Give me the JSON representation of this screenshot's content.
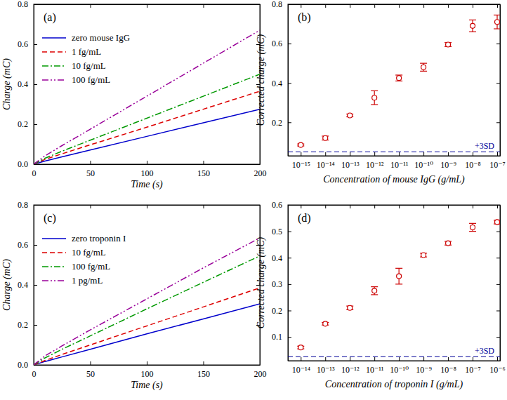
{
  "chart_data": [
    {
      "type": "line",
      "title": "(a)",
      "x_label": "Time (s)",
      "y_label": "Charge (mC)",
      "x": [
        0,
        10,
        25,
        50,
        100,
        150,
        200
      ],
      "series": [
        {
          "name": "zero mouse IgG",
          "color": "#0000cc",
          "line_style": "solid",
          "values": [
            0,
            0.016,
            0.037,
            0.071,
            0.139,
            0.207,
            0.275
          ]
        },
        {
          "name": "1 fg/mL",
          "color": "#dd0000",
          "line_style": "dashed",
          "values": [
            0,
            0.024,
            0.052,
            0.097,
            0.185,
            0.275,
            0.365
          ]
        },
        {
          "name": "10 fg/mL",
          "color": "#009900",
          "line_style": "dashdot",
          "values": [
            0,
            0.03,
            0.065,
            0.12,
            0.23,
            0.34,
            0.45
          ]
        },
        {
          "name": "100 fg/mL",
          "color": "#990099",
          "line_style": "dashdotdot",
          "values": [
            0,
            0.042,
            0.093,
            0.175,
            0.34,
            0.505,
            0.67
          ]
        }
      ],
      "xlim": [
        0,
        200
      ],
      "ylim": [
        0,
        0.8
      ],
      "xticks": [
        0,
        50,
        100,
        150,
        200
      ],
      "yticks": [
        {
          "value": 0,
          "label": "0.0"
        },
        0.2,
        0.4,
        0.6,
        0.8
      ],
      "legend": "upper left"
    },
    {
      "type": "scatter",
      "title": "(b)",
      "x_label": "Concentration of mouse IgG (g/mL)",
      "y_label": "Corrected charge (mC)",
      "x": [
        1e-15,
        1e-14,
        1e-13,
        1e-12,
        1e-11,
        1e-10,
        1e-09,
        1e-08,
        1e-07
      ],
      "values": [
        0.085,
        0.12,
        0.235,
        0.325,
        0.425,
        0.48,
        0.595,
        0.69,
        0.71
      ],
      "errors": [
        0.005,
        0.01,
        0.007,
        0.035,
        0.015,
        0.02,
        0.01,
        0.03,
        0.035
      ],
      "color": "#cc0000",
      "marker": "circle",
      "log": "x",
      "xlim": [
        3e-16,
        1.3e-07
      ],
      "ylim": [
        0.03,
        0.8
      ],
      "xticks": [
        {
          "value": 1e-15,
          "label": "10⁻¹⁵"
        },
        {
          "value": 1e-14,
          "label": "10⁻¹⁴"
        },
        {
          "value": 1e-13,
          "label": "10⁻¹³"
        },
        {
          "value": 1e-12,
          "label": "10⁻¹²"
        },
        {
          "value": 1e-11,
          "label": "10⁻¹¹"
        },
        {
          "value": 1e-10,
          "label": "10⁻¹⁰"
        },
        {
          "value": 1e-09,
          "label": "10⁻⁹"
        },
        {
          "value": 1e-08,
          "label": "10⁻⁸"
        },
        {
          "value": 1e-07,
          "label": "10⁻⁷"
        }
      ],
      "yticks": [
        0.2,
        0.4,
        0.6,
        0.8
      ],
      "threshold": {
        "value": 0.05,
        "label": "+3SD"
      }
    },
    {
      "type": "line",
      "title": "(c)",
      "x_label": "Time (s)",
      "y_label": "Charge (mC)",
      "x": [
        0,
        10,
        25,
        50,
        100,
        150,
        200
      ],
      "series": [
        {
          "name": "zero troponin I",
          "color": "#0000cc",
          "line_style": "solid",
          "values": [
            0,
            0.017,
            0.04,
            0.078,
            0.155,
            0.23,
            0.305
          ]
        },
        {
          "name": "10 fg/mL",
          "color": "#dd0000",
          "line_style": "dashed",
          "values": [
            0,
            0.022,
            0.052,
            0.1,
            0.195,
            0.29,
            0.385
          ]
        },
        {
          "name": "100 fg/mL",
          "color": "#009900",
          "line_style": "dashdot",
          "values": [
            0,
            0.035,
            0.078,
            0.145,
            0.28,
            0.413,
            0.545
          ]
        },
        {
          "name": "1 pg/mL",
          "color": "#990099",
          "line_style": "dashdotdot",
          "values": [
            0,
            0.045,
            0.095,
            0.175,
            0.33,
            0.485,
            0.635
          ]
        }
      ],
      "xlim": [
        0,
        200
      ],
      "ylim": [
        0,
        0.8
      ],
      "xticks": [
        0,
        50,
        100,
        150,
        200
      ],
      "yticks": [
        {
          "value": 0,
          "label": "0.0"
        },
        0.2,
        0.4,
        0.6,
        0.8
      ],
      "legend": "upper left"
    },
    {
      "type": "scatter",
      "title": "(d)",
      "x_label": "Concentration of troponin I (g/mL)",
      "y_label": "Corrected charge (mC)",
      "x": [
        1e-14,
        1e-13,
        1e-12,
        1e-11,
        1e-10,
        1e-09,
        1e-08,
        1e-07,
        1e-06
      ],
      "values": [
        0.06,
        0.15,
        0.21,
        0.275,
        0.33,
        0.41,
        0.455,
        0.515,
        0.535
      ],
      "errors": [
        0.005,
        0.005,
        0.007,
        0.015,
        0.03,
        0.007,
        0.007,
        0.015,
        0.007
      ],
      "color": "#cc0000",
      "marker": "circle",
      "log": "x",
      "xlim": [
        3e-15,
        1.3e-06
      ],
      "ylim": [
        0.01,
        0.6
      ],
      "xticks": [
        {
          "value": 1e-14,
          "label": "10⁻¹⁴"
        },
        {
          "value": 1e-13,
          "label": "10⁻¹³"
        },
        {
          "value": 1e-12,
          "label": "10⁻¹²"
        },
        {
          "value": 1e-11,
          "label": "10⁻¹¹"
        },
        {
          "value": 1e-10,
          "label": "10⁻¹⁰"
        },
        {
          "value": 1e-09,
          "label": "10⁻⁹"
        },
        {
          "value": 1e-08,
          "label": "10⁻⁸"
        },
        {
          "value": 1e-07,
          "label": "10⁻⁷"
        },
        {
          "value": 1e-06,
          "label": "10⁻⁶"
        }
      ],
      "yticks": [
        0.1,
        0.2,
        0.3,
        0.4,
        0.5,
        0.6
      ],
      "threshold": {
        "value": 0.025,
        "label": "+3SD"
      }
    }
  ]
}
